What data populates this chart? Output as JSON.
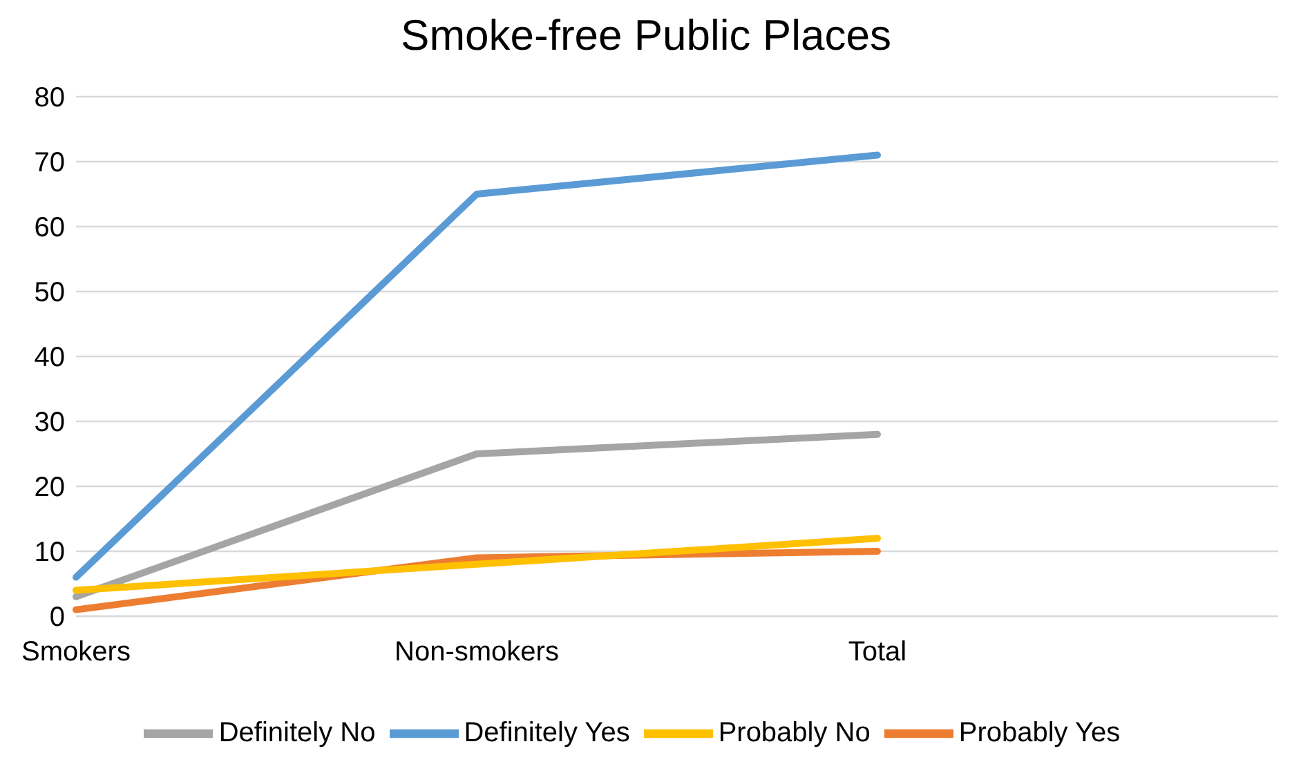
{
  "chart_data": {
    "type": "line",
    "title": "Smoke-free Public Places",
    "categories": [
      "Smokers",
      "Non-smokers",
      "Total",
      null
    ],
    "series": [
      {
        "name": "Definitely Yes",
        "color": "#5b9bd5",
        "values": [
          6,
          65,
          71,
          null
        ]
      },
      {
        "name": "Probably Yes",
        "color": "#ed7d31",
        "values": [
          1,
          9,
          10,
          null
        ]
      },
      {
        "name": "Definitely No",
        "color": "#a5a5a5",
        "values": [
          3,
          25,
          28,
          null
        ]
      },
      {
        "name": "Probably No",
        "color": "#ffc000",
        "values": [
          4,
          8,
          12,
          null
        ]
      }
    ],
    "ylim": [
      0,
      80
    ],
    "yticks": [
      0,
      10,
      20,
      30,
      40,
      50,
      60,
      70,
      80
    ],
    "grid": "y",
    "legend": "bottom",
    "marker": "none",
    "line_style": "solid"
  }
}
